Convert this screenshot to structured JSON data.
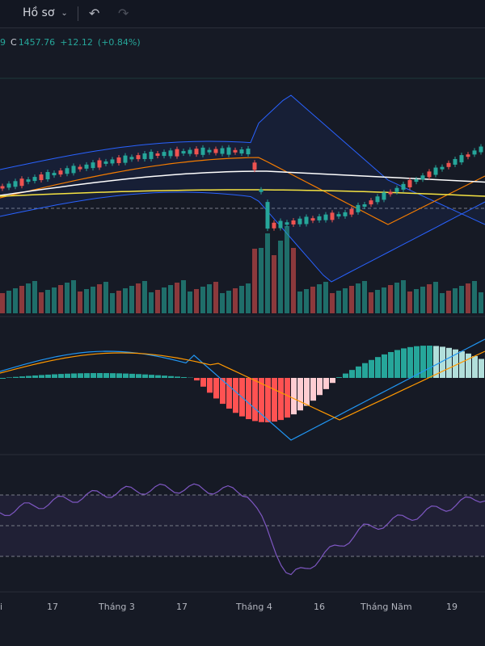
{
  "toolbar": {
    "profile_label": "Hồ sơ",
    "chevron_icon": "chevron-down-icon",
    "undo_icon": "undo-icon",
    "redo_icon": "redo-icon"
  },
  "quote": {
    "prefix": "9",
    "c_label": "C",
    "close": "1457.76",
    "change": "+12.12",
    "change_pct": "(+0.84%)"
  },
  "colors": {
    "up": "#26a69a",
    "down": "#ef5350",
    "background": "#161a25",
    "bb_band": "#2962ff",
    "ma_orange": "#f57c00",
    "ma_white": "#ffffff",
    "ma_yellow": "#f5e342",
    "rsi": "#7e57c2"
  },
  "x_axis": {
    "labels": [
      "i",
      "17",
      "Tháng 3",
      "17",
      "Tháng 4",
      "16",
      "Tháng Năm",
      "19"
    ]
  }
}
